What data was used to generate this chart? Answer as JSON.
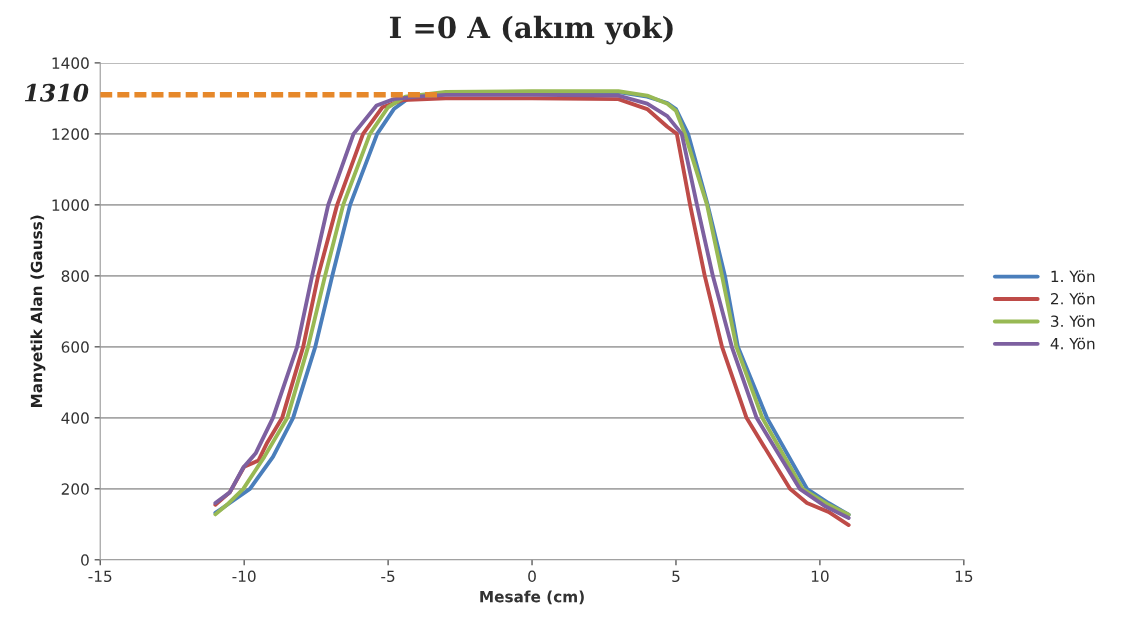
{
  "chart_data": {
    "type": "line",
    "title": "I =0 A (akım yok)",
    "xlabel": "Mesafe (cm)",
    "ylabel": "Manyetik Alan (Gauss)",
    "xlim": [
      -15,
      15
    ],
    "xticks": [
      -15,
      -10,
      -5,
      0,
      5,
      10,
      15
    ],
    "ylim": [
      0,
      1400
    ],
    "yticks": [
      0,
      200,
      400,
      600,
      800,
      1000,
      1200,
      1400
    ],
    "grid": "y",
    "legend": "right",
    "marker": "none",
    "line_style": "solid",
    "annotations": [
      {
        "text": "1310",
        "x": -15,
        "y": 1310
      }
    ],
    "series": [
      {
        "name": "1. Yön",
        "color": "#4a7ebb",
        "x": [
          -11,
          -10.5,
          -9.8,
          -9,
          -8.3,
          -7.53,
          -6.94,
          -6.32,
          -5.38,
          -4.8,
          -4.3,
          -3,
          0,
          3,
          4,
          4.7,
          5,
          5.42,
          6.1,
          6.7,
          7.15,
          8.16,
          9.55,
          10.3,
          11
        ],
        "values": [
          132,
          160,
          200,
          290,
          400,
          600,
          800,
          1000,
          1200,
          1270,
          1300,
          1315,
          1318,
          1318,
          1305,
          1287,
          1270,
          1200,
          1000,
          800,
          600,
          400,
          200,
          160,
          127
        ]
      },
      {
        "name": "2. Yön",
        "color": "#be4b48",
        "x": [
          -11,
          -10.5,
          -10,
          -9.5,
          -9.2,
          -8.68,
          -7.95,
          -7.43,
          -6.77,
          -5.87,
          -5.2,
          -4.5,
          -3,
          0,
          3,
          4,
          4.7,
          5.03,
          5.49,
          6,
          6.6,
          7.45,
          8.96,
          9.55,
          10.3,
          11
        ],
        "values": [
          155,
          190,
          262,
          280,
          330,
          400,
          600,
          800,
          1000,
          1200,
          1275,
          1295,
          1300,
          1300,
          1298,
          1270,
          1220,
          1200,
          1000,
          800,
          600,
          400,
          200,
          160,
          135,
          98
        ]
      },
      {
        "name": "3. Yön",
        "color": "#98b954",
        "x": [
          -11,
          -10.6,
          -10.03,
          -9.3,
          -8.5,
          -7.78,
          -7.19,
          -6.56,
          -5.63,
          -5,
          -4.4,
          -3,
          0,
          3,
          4,
          4.7,
          5,
          5.31,
          6.08,
          6.6,
          7.1,
          8,
          9.4,
          10.3,
          11
        ],
        "values": [
          128,
          155,
          200,
          290,
          400,
          600,
          800,
          1000,
          1200,
          1275,
          1305,
          1318,
          1320,
          1320,
          1308,
          1285,
          1265,
          1200,
          1000,
          800,
          600,
          400,
          200,
          155,
          127
        ]
      },
      {
        "name": "4. Yön",
        "color": "#7d60a0",
        "x": [
          -11,
          -10.5,
          -10.03,
          -9.6,
          -9,
          -8.16,
          -7.64,
          -7.08,
          -6.2,
          -5.4,
          -4.8,
          -4,
          -3,
          0,
          3,
          4,
          4.7,
          5.2,
          5.73,
          6.28,
          6.94,
          7.8,
          9.3,
          10.2,
          11
        ],
        "values": [
          160,
          190,
          260,
          300,
          400,
          600,
          800,
          1000,
          1200,
          1280,
          1298,
          1305,
          1310,
          1310,
          1308,
          1285,
          1250,
          1200,
          1000,
          800,
          600,
          400,
          200,
          150,
          118
        ]
      },
      {
        "color": "#e6882a",
        "line_style": "dashed",
        "x": [
          -15,
          -3.3
        ],
        "values": [
          1310,
          1310
        ]
      }
    ]
  }
}
